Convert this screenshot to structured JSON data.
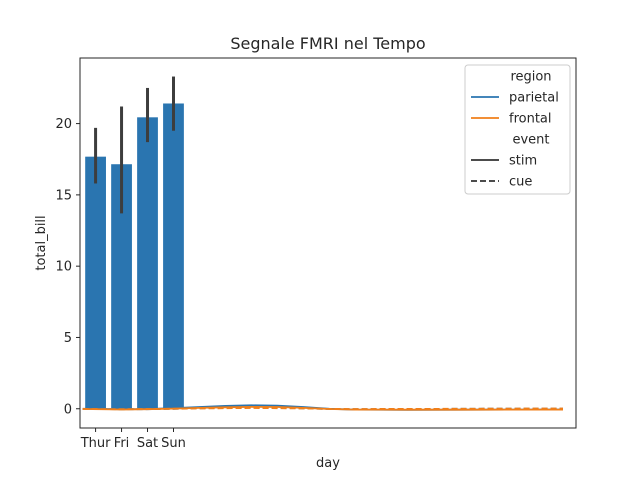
{
  "chart_data": {
    "type": "bar",
    "title": "Segnale FMRI nel Tempo",
    "xlabel": "day",
    "ylabel": "total_bill",
    "categories": [
      "Thur",
      "Fri",
      "Sat",
      "Sun"
    ],
    "bars": {
      "color": "#2a75b0",
      "values": [
        17.68,
        17.15,
        20.44,
        21.41
      ],
      "ci_low": [
        15.8,
        13.7,
        18.7,
        19.5
      ],
      "ci_high": [
        19.7,
        21.2,
        22.5,
        23.3
      ]
    },
    "yticks": [
      0,
      5,
      10,
      15,
      20
    ],
    "ylim": [
      -1.35,
      24.6
    ],
    "xlim": [
      -0.6,
      18.5
    ],
    "grid": false,
    "line_series": [
      {
        "region": "parietal",
        "event": "stim",
        "color": "#2a75b0",
        "style": "solid",
        "x": [
          -0.5,
          1,
          2,
          3,
          4,
          5,
          6,
          7,
          8,
          9,
          10,
          12,
          14,
          16,
          18
        ],
        "y": [
          0.0,
          -0.03,
          -0.02,
          0.04,
          0.12,
          0.2,
          0.24,
          0.22,
          0.12,
          0.0,
          -0.06,
          -0.08,
          -0.07,
          -0.06,
          -0.05
        ]
      },
      {
        "region": "parietal",
        "event": "cue",
        "color": "#2a75b0",
        "style": "dashed",
        "x": [
          -0.5,
          1,
          2,
          3,
          4,
          5,
          6,
          7,
          8,
          9,
          10,
          12,
          14,
          16,
          18
        ],
        "y": [
          -0.01,
          -0.03,
          -0.03,
          0.0,
          0.04,
          0.08,
          0.09,
          0.07,
          0.03,
          -0.02,
          -0.03,
          -0.02,
          0.0,
          0.01,
          0.01
        ]
      },
      {
        "region": "frontal",
        "event": "stim",
        "color": "#f07f1a",
        "style": "solid",
        "x": [
          -0.5,
          1,
          2,
          3,
          4,
          5,
          6,
          7,
          8,
          9,
          10,
          12,
          14,
          16,
          18
        ],
        "y": [
          -0.02,
          -0.05,
          -0.03,
          0.01,
          0.06,
          0.1,
          0.13,
          0.12,
          0.06,
          -0.02,
          -0.06,
          -0.07,
          -0.07,
          -0.06,
          -0.06
        ]
      },
      {
        "region": "frontal",
        "event": "cue",
        "color": "#f07f1a",
        "style": "dashed",
        "x": [
          -0.5,
          1,
          2,
          3,
          4,
          5,
          6,
          7,
          8,
          9,
          10,
          12,
          14,
          16,
          18
        ],
        "y": [
          -0.02,
          -0.03,
          -0.02,
          0.0,
          0.02,
          0.04,
          0.05,
          0.04,
          0.02,
          -0.01,
          -0.02,
          -0.01,
          0.0,
          0.01,
          0.02
        ]
      }
    ],
    "legend": {
      "placement": "top-right",
      "entries": [
        {
          "kind": "header",
          "label": "region"
        },
        {
          "kind": "line",
          "label": "parietal",
          "color": "#2a75b0",
          "style": "solid"
        },
        {
          "kind": "line",
          "label": "frontal",
          "color": "#f07f1a",
          "style": "solid"
        },
        {
          "kind": "header",
          "label": "event"
        },
        {
          "kind": "line",
          "label": "stim",
          "color": "#333333",
          "style": "solid"
        },
        {
          "kind": "line",
          "label": "cue",
          "color": "#333333",
          "style": "dashed"
        }
      ]
    }
  }
}
